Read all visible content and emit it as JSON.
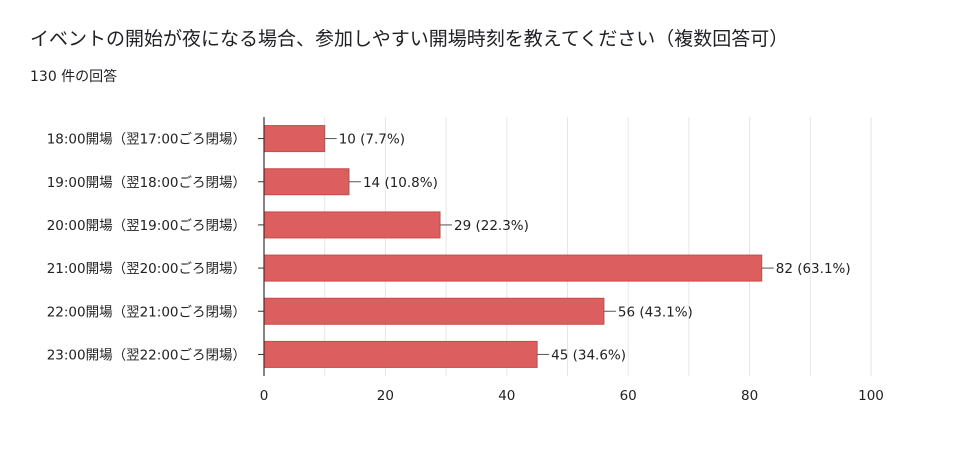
{
  "question_title": "イベントの開始が夜になる場合、参加しやすい開場時刻を教えてください（複数回答可）",
  "response_count": "130 件の回答",
  "colors": {
    "bar": "#dd5e5e",
    "bar_stroke": "#c94a4a",
    "grid": "#e6e6e6",
    "axis": "#333333"
  },
  "chart_data": {
    "type": "bar",
    "orientation": "horizontal",
    "categories": [
      "18:00開場（翌17:00ごろ閉場）",
      "19:00開場（翌18:00ごろ閉場）",
      "20:00開場（翌19:00ごろ閉場）",
      "21:00開場（翌20:00ごろ閉場）",
      "22:00開場（翌21:00ごろ閉場）",
      "23:00開場（翌22:00ごろ閉場）"
    ],
    "values": [
      10,
      14,
      29,
      82,
      56,
      45
    ],
    "data_labels": [
      "10 (7.7%)",
      "14 (10.8%)",
      "29 (22.3%)",
      "82 (63.1%)",
      "56 (43.1%)",
      "45 (34.6%)"
    ],
    "xlim": [
      0,
      100
    ],
    "xticks": [
      0,
      20,
      40,
      60,
      80,
      100
    ],
    "xtick_labels": [
      "0",
      "20",
      "40",
      "60",
      "80",
      "100"
    ],
    "minor_grid_step": 10,
    "grid": true,
    "legend": "none"
  }
}
